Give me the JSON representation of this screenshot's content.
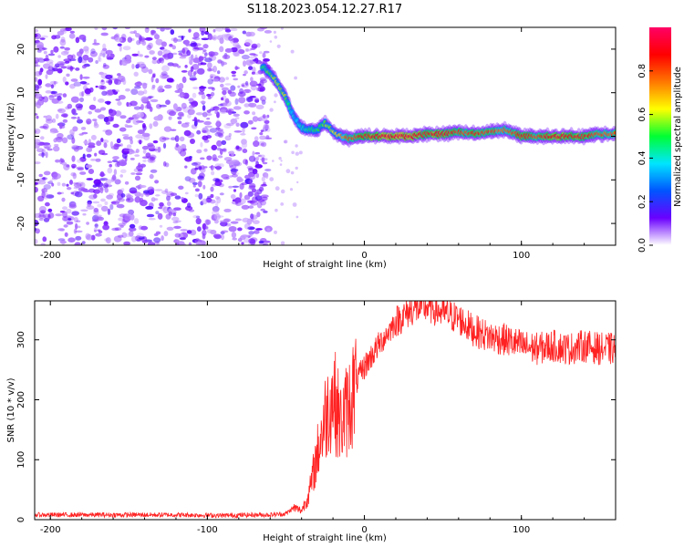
{
  "title": "S118.2023.054.12.27.R17",
  "chart_data": [
    {
      "type": "heatmap",
      "xlabel": "Height of straight line (km)",
      "ylabel": "Frequency (Hz)",
      "xlim": [
        -210,
        160
      ],
      "ylim": [
        -25,
        25
      ],
      "xticks": [
        -200,
        -100,
        0,
        100
      ],
      "yticks": [
        -20,
        -10,
        0,
        10,
        20
      ],
      "colorbar": {
        "label": "Normalized spectral amplitude",
        "range": [
          0,
          1
        ],
        "ticks": [
          "0.0",
          "0.2",
          "0.4",
          "0.6",
          "0.8"
        ],
        "colors": [
          "#ffffff",
          "#6a00ff",
          "#0055ff",
          "#00e5ff",
          "#00ff33",
          "#ffff00",
          "#ff7700",
          "#ff0000",
          "#ff0066"
        ]
      },
      "noise_region_x": [
        -210,
        -65
      ],
      "ridge": {
        "x": [
          -65,
          -60,
          -55,
          -50,
          -47,
          -44,
          -40,
          -35,
          -30,
          -25,
          -20,
          -15,
          -10,
          0,
          10,
          20,
          30,
          40,
          50,
          60,
          70,
          80,
          90,
          100,
          110,
          120,
          130,
          140,
          150,
          160
        ],
        "frequency": [
          16,
          14.5,
          12,
          9,
          6,
          4,
          2,
          1.5,
          1.5,
          3,
          1,
          0,
          -0.5,
          0,
          0,
          0,
          0,
          0.5,
          0.5,
          1,
          0.5,
          1,
          1.5,
          0,
          0,
          0,
          0,
          0,
          0.5,
          0.5
        ],
        "amplitude": [
          0.45,
          0.55,
          0.6,
          0.55,
          0.4,
          0.35,
          0.4,
          0.45,
          0.5,
          0.55,
          0.6,
          0.7,
          0.8,
          0.85,
          0.9,
          0.92,
          0.9,
          0.85,
          0.88,
          0.8,
          0.85,
          0.8,
          0.75,
          0.85,
          0.8,
          0.9,
          0.88,
          0.85,
          0.8,
          0.75
        ]
      }
    },
    {
      "type": "line",
      "xlabel": "Height of straight line (km)",
      "ylabel": "SNR (10 * v/v)",
      "xlim": [
        -210,
        160
      ],
      "ylim": [
        0,
        365
      ],
      "xticks": [
        -200,
        -100,
        0,
        100
      ],
      "yticks": [
        0,
        100,
        200,
        300
      ],
      "series": [
        {
          "color": "#ff2222",
          "x": [
            -210,
            -180,
            -150,
            -120,
            -90,
            -70,
            -60,
            -50,
            -45,
            -40,
            -35,
            -30,
            -25,
            -20,
            -15,
            -10,
            -5,
            0,
            10,
            20,
            30,
            40,
            50,
            60,
            70,
            80,
            90,
            100,
            110,
            120,
            130,
            140,
            150,
            160
          ],
          "y": [
            8,
            8,
            8,
            8,
            7,
            8,
            8,
            10,
            20,
            15,
            45,
            110,
            170,
            210,
            160,
            190,
            230,
            255,
            295,
            330,
            350,
            355,
            345,
            335,
            315,
            305,
            300,
            290,
            285,
            290,
            285,
            290,
            285,
            285
          ]
        }
      ]
    }
  ]
}
